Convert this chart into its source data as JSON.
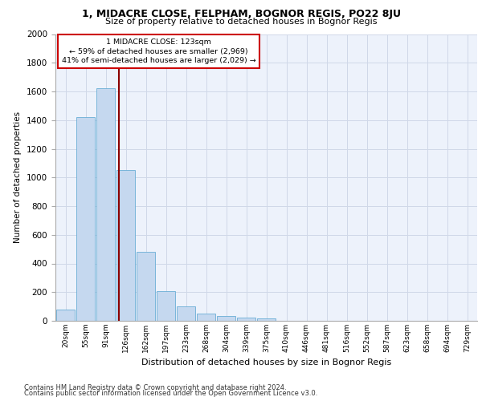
{
  "title1": "1, MIDACRE CLOSE, FELPHAM, BOGNOR REGIS, PO22 8JU",
  "title2": "Size of property relative to detached houses in Bognor Regis",
  "xlabel": "Distribution of detached houses by size in Bognor Regis",
  "ylabel": "Number of detached properties",
  "categories": [
    "20sqm",
    "55sqm",
    "91sqm",
    "126sqm",
    "162sqm",
    "197sqm",
    "233sqm",
    "268sqm",
    "304sqm",
    "339sqm",
    "375sqm",
    "410sqm",
    "446sqm",
    "481sqm",
    "516sqm",
    "552sqm",
    "587sqm",
    "623sqm",
    "658sqm",
    "694sqm",
    "729sqm"
  ],
  "values": [
    80,
    1420,
    1620,
    1050,
    480,
    205,
    100,
    48,
    35,
    25,
    18,
    0,
    0,
    0,
    0,
    0,
    0,
    0,
    0,
    0,
    0
  ],
  "bar_color": "#c5d8ef",
  "bar_edge_color": "#6aaed6",
  "vline_x": 2.65,
  "vline_color": "#8b0000",
  "annotation_line1": "1 MIDACRE CLOSE: 123sqm",
  "annotation_line2": "← 59% of detached houses are smaller (2,969)",
  "annotation_line3": "41% of semi-detached houses are larger (2,029) →",
  "annotation_box_color": "#ffffff",
  "annotation_box_edge": "#cc0000",
  "ylim": [
    0,
    2000
  ],
  "yticks": [
    0,
    200,
    400,
    600,
    800,
    1000,
    1200,
    1400,
    1600,
    1800,
    2000
  ],
  "grid_color": "#d0d8e8",
  "bg_color": "#edf2fb",
  "footer1": "Contains HM Land Registry data © Crown copyright and database right 2024.",
  "footer2": "Contains public sector information licensed under the Open Government Licence v3.0."
}
